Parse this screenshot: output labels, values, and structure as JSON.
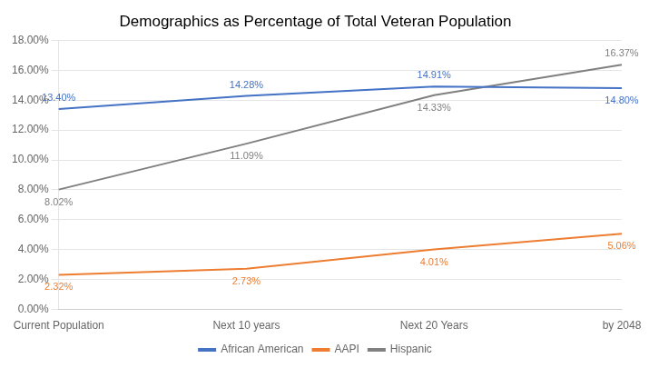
{
  "chart_data": {
    "type": "line",
    "title": "Demographics as Percentage of Total Veteran Population",
    "categories": [
      "Current Population",
      "Next 10 years",
      "Next 20 Years",
      "by 2048"
    ],
    "series": [
      {
        "name": "African American",
        "color": "#4472C4",
        "values": [
          13.4,
          14.28,
          14.91,
          14.8
        ],
        "value_labels": [
          "13.40%",
          "14.28%",
          "14.91%",
          "14.80%"
        ]
      },
      {
        "name": "AAPI",
        "color": "#ED7D31",
        "values": [
          2.32,
          2.73,
          4.01,
          5.06
        ],
        "value_labels": [
          "2.32%",
          "2.73%",
          "4.01%",
          "5.06%"
        ]
      },
      {
        "name": "Hispanic",
        "color": "#808080",
        "values": [
          8.02,
          11.09,
          14.33,
          16.37
        ],
        "value_labels": [
          "8.02%",
          "11.09%",
          "14.33%",
          "16.37%"
        ]
      }
    ],
    "ylim": [
      0,
      18
    ],
    "yticks": [
      {
        "value": 0,
        "label": "0.00%"
      },
      {
        "value": 2,
        "label": "2.00%"
      },
      {
        "value": 4,
        "label": "4.00%"
      },
      {
        "value": 6,
        "label": "6.00%"
      },
      {
        "value": 8,
        "label": "8.00%"
      },
      {
        "value": 10,
        "label": "10.00%"
      },
      {
        "value": 12,
        "label": "12.00%"
      },
      {
        "value": 14,
        "label": "14.00%"
      },
      {
        "value": 16,
        "label": "16.00%"
      },
      {
        "value": 18,
        "label": "18.00%"
      }
    ],
    "grid": true,
    "legend": "bottom",
    "data_labels": true
  }
}
